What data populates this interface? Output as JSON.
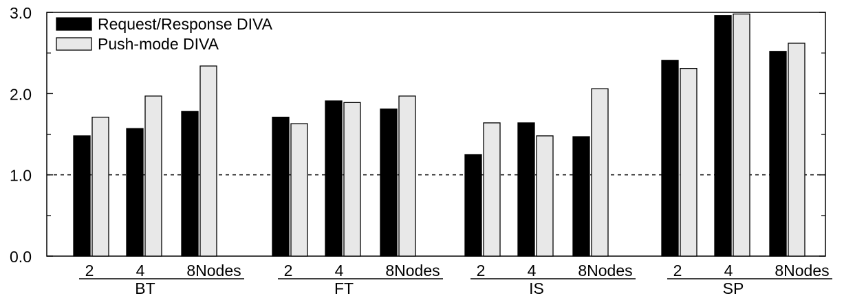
{
  "chart_data": {
    "type": "bar",
    "title": "",
    "xlabel": "",
    "ylabel": "",
    "ylim": [
      0,
      3
    ],
    "yticks": [
      "0.0",
      "1.0",
      "2.0",
      "3.0"
    ],
    "reference_line": 1.0,
    "grid": false,
    "legend_position": "top-left",
    "node_suffix": "Nodes",
    "groups": [
      {
        "name": "BT",
        "categories": [
          "2",
          "4",
          "8"
        ],
        "series": [
          {
            "name": "Request/Response DIVA",
            "values": [
              1.48,
              1.57,
              1.78
            ]
          },
          {
            "name": "Push-mode DIVA",
            "values": [
              1.71,
              1.97,
              2.34
            ]
          }
        ]
      },
      {
        "name": "FT",
        "categories": [
          "2",
          "4",
          "8"
        ],
        "series": [
          {
            "name": "Request/Response DIVA",
            "values": [
              1.71,
              1.91,
              1.81
            ]
          },
          {
            "name": "Push-mode DIVA",
            "values": [
              1.63,
              1.89,
              1.97
            ]
          }
        ]
      },
      {
        "name": "IS",
        "categories": [
          "2",
          "4",
          "8"
        ],
        "series": [
          {
            "name": "Request/Response DIVA",
            "values": [
              1.25,
              1.64,
              1.47
            ]
          },
          {
            "name": "Push-mode DIVA",
            "values": [
              1.64,
              1.48,
              2.06
            ]
          }
        ]
      },
      {
        "name": "SP",
        "categories": [
          "2",
          "4",
          "8"
        ],
        "series": [
          {
            "name": "Request/Response DIVA",
            "values": [
              2.41,
              2.96,
              2.52
            ]
          },
          {
            "name": "Push-mode DIVA",
            "values": [
              2.31,
              2.98,
              2.62
            ]
          }
        ]
      }
    ],
    "legend": [
      {
        "name": "Request/Response DIVA",
        "color": "#000000"
      },
      {
        "name": "Push-mode DIVA",
        "color": "#e8e8e8"
      }
    ]
  }
}
